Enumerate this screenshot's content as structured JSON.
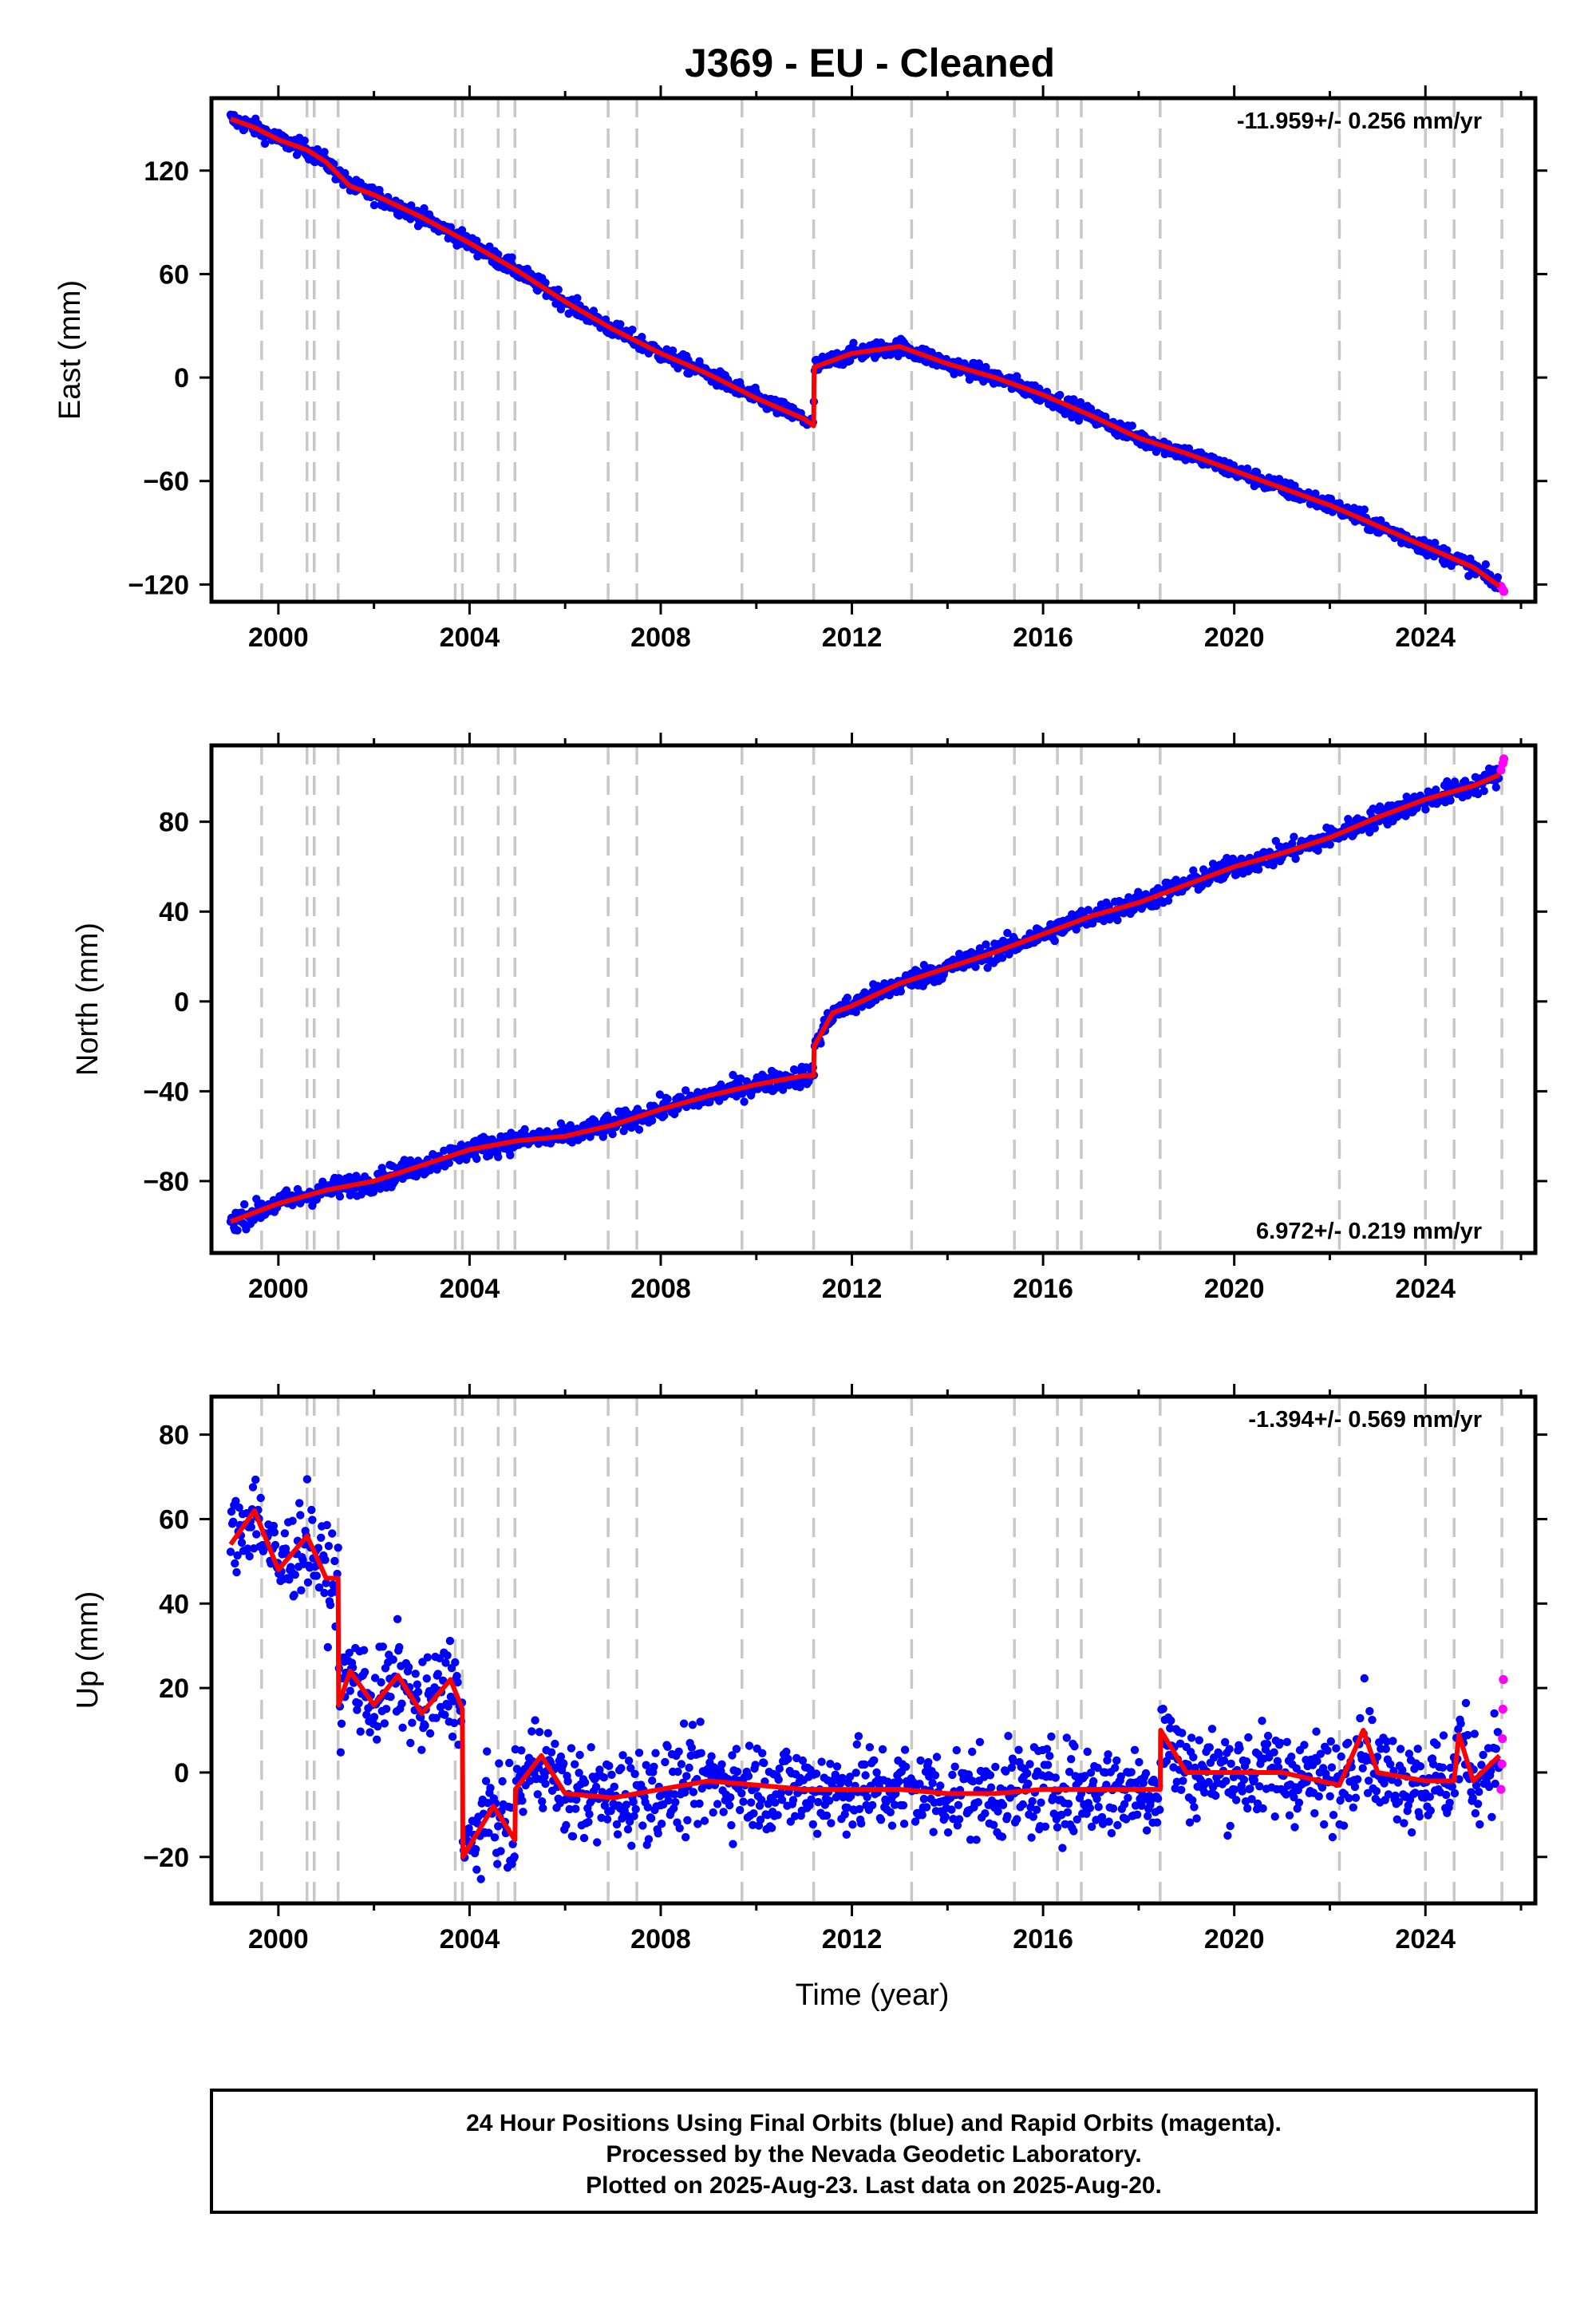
{
  "title": "J369  - EU - Cleaned",
  "colors": {
    "final": "#0000ff",
    "rapid": "#ff00ff",
    "model": "#ff0000",
    "steps": "#c8c8c8",
    "frame": "#000000"
  },
  "xlabel": "Time (year)",
  "x_ticks": [
    "2000",
    "2004",
    "2008",
    "2012",
    "2016",
    "2020",
    "2024"
  ],
  "footer": [
    "24 Hour Positions Using Final Orbits (blue) and Rapid Orbits (magenta).",
    "Processed by the Nevada Geodetic Laboratory.",
    "Plotted on 2025-Aug-23. Last data on 2025-Aug-20."
  ],
  "chart_data": [
    {
      "type": "scatter",
      "ylabel": "East (mm)",
      "rate": "-11.959+/- 0.256 mm/yr",
      "rate_position": "top-right",
      "xlim": [
        1998.6,
        2026.3
      ],
      "ylim": [
        -130,
        162
      ],
      "y_ticks": [
        -120,
        -60,
        0,
        60,
        120
      ],
      "y_tick_labels": [
        "−120",
        "−60",
        "0",
        "60",
        "120"
      ],
      "grid": false,
      "step_epochs": [
        1999.65,
        2000.6,
        2000.75,
        2001.25,
        2003.7,
        2003.85,
        2004.6,
        2004.95,
        2006.9,
        2007.5,
        2009.7,
        2011.2,
        2013.25,
        2015.4,
        2016.3,
        2016.8,
        2018.45,
        2022.2,
        2024.0,
        2024.6,
        2025.6
      ],
      "series": [
        {
          "name": "Final Orbits (blue)",
          "values": [
            [
              1999.0,
              150
            ],
            [
              1999.5,
              145
            ],
            [
              2000.0,
              138
            ],
            [
              2000.6,
              132
            ],
            [
              2001.0,
              125
            ],
            [
              2001.25,
              118
            ],
            [
              2001.5,
              111
            ],
            [
              2002.0,
              106
            ],
            [
              2003.0,
              93
            ],
            [
              2004.0,
              78
            ],
            [
              2005.0,
              62
            ],
            [
              2006.0,
              44
            ],
            [
              2007.0,
              28
            ],
            [
              2008.0,
              14
            ],
            [
              2009.0,
              2
            ],
            [
              2010.0,
              -12
            ],
            [
              2011.0,
              -24
            ],
            [
              2011.2,
              -28
            ],
            [
              2011.21,
              6
            ],
            [
              2012.0,
              14
            ],
            [
              2013.0,
              18
            ],
            [
              2014.0,
              8
            ],
            [
              2015.0,
              0
            ],
            [
              2016.0,
              -10
            ],
            [
              2017.0,
              -22
            ],
            [
              2018.0,
              -35
            ],
            [
              2019.0,
              -44
            ],
            [
              2020.0,
              -54
            ],
            [
              2021.0,
              -64
            ],
            [
              2022.0,
              -74
            ],
            [
              2023.0,
              -86
            ],
            [
              2024.0,
              -98
            ],
            [
              2025.0,
              -110
            ],
            [
              2025.55,
              -121
            ]
          ]
        },
        {
          "name": "Rapid Orbits (magenta)",
          "values": [
            [
              2025.58,
              -121
            ],
            [
              2025.62,
              -123
            ],
            [
              2025.64,
              -124
            ]
          ]
        }
      ]
    },
    {
      "type": "scatter",
      "ylabel": "North (mm)",
      "rate": "6.972+/- 0.219 mm/yr",
      "rate_position": "bottom-right",
      "xlim": [
        1998.6,
        2026.3
      ],
      "ylim": [
        -112,
        114
      ],
      "y_ticks": [
        -80,
        -40,
        0,
        40,
        80
      ],
      "y_tick_labels": [
        "−80",
        "−40",
        "0",
        "40",
        "80"
      ],
      "grid": false,
      "step_epochs": [
        1999.65,
        2000.6,
        2000.75,
        2001.25,
        2003.7,
        2003.85,
        2004.6,
        2004.95,
        2006.9,
        2007.5,
        2009.7,
        2011.2,
        2013.25,
        2015.4,
        2016.3,
        2016.8,
        2018.45,
        2022.2,
        2024.0,
        2024.6,
        2025.6
      ],
      "series": [
        {
          "name": "Final Orbits (blue)",
          "values": [
            [
              1999.0,
              -98
            ],
            [
              2000.0,
              -90
            ],
            [
              2001.0,
              -84
            ],
            [
              2002.0,
              -80
            ],
            [
              2003.0,
              -73
            ],
            [
              2004.0,
              -66
            ],
            [
              2005.0,
              -62
            ],
            [
              2006.0,
              -60
            ],
            [
              2007.0,
              -55
            ],
            [
              2008.0,
              -48
            ],
            [
              2009.0,
              -42
            ],
            [
              2010.0,
              -37
            ],
            [
              2011.0,
              -33
            ],
            [
              2011.2,
              -33
            ],
            [
              2011.21,
              -20
            ],
            [
              2011.6,
              -5
            ],
            [
              2012.0,
              -2
            ],
            [
              2013.0,
              8
            ],
            [
              2014.0,
              15
            ],
            [
              2015.0,
              22
            ],
            [
              2016.0,
              30
            ],
            [
              2017.0,
              38
            ],
            [
              2018.0,
              44
            ],
            [
              2019.0,
              52
            ],
            [
              2020.0,
              60
            ],
            [
              2021.0,
              66
            ],
            [
              2022.0,
              73
            ],
            [
              2023.0,
              82
            ],
            [
              2024.0,
              90
            ],
            [
              2025.0,
              96
            ],
            [
              2025.55,
              101
            ]
          ]
        },
        {
          "name": "Rapid Orbits (magenta)",
          "values": [
            [
              2025.58,
              103
            ],
            [
              2025.62,
              106
            ],
            [
              2025.64,
              108
            ]
          ]
        }
      ]
    },
    {
      "type": "scatter",
      "ylabel": "Up (mm)",
      "rate": "-1.394+/- 0.569 mm/yr",
      "rate_position": "top-right",
      "xlim": [
        1998.6,
        2026.3
      ],
      "ylim": [
        -31,
        89
      ],
      "y_ticks": [
        -20,
        0,
        20,
        40,
        60,
        80
      ],
      "y_tick_labels": [
        "−20",
        "0",
        "20",
        "40",
        "60",
        "80"
      ],
      "grid": false,
      "step_epochs": [
        1999.65,
        2000.6,
        2000.75,
        2001.25,
        2003.7,
        2003.85,
        2004.6,
        2004.95,
        2006.9,
        2007.5,
        2009.7,
        2011.2,
        2013.25,
        2015.4,
        2016.3,
        2016.8,
        2018.45,
        2022.2,
        2024.0,
        2024.6,
        2025.6
      ],
      "series": [
        {
          "name": "Final Orbits (blue)",
          "values": [
            [
              1999.0,
              54
            ],
            [
              1999.5,
              62
            ],
            [
              2000.0,
              48
            ],
            [
              2000.6,
              56
            ],
            [
              2001.0,
              46
            ],
            [
              2001.25,
              46
            ],
            [
              2001.26,
              16
            ],
            [
              2001.5,
              24
            ],
            [
              2002.0,
              16
            ],
            [
              2002.5,
              23
            ],
            [
              2003.0,
              14
            ],
            [
              2003.6,
              22
            ],
            [
              2003.85,
              15
            ],
            [
              2003.86,
              -20
            ],
            [
              2004.5,
              -8
            ],
            [
              2004.95,
              -16
            ],
            [
              2004.96,
              -4
            ],
            [
              2005.5,
              4
            ],
            [
              2006.0,
              -5
            ],
            [
              2007.0,
              -6
            ],
            [
              2008.0,
              -4
            ],
            [
              2009.0,
              -2
            ],
            [
              2010.0,
              -3
            ],
            [
              2011.0,
              -4
            ],
            [
              2012.0,
              -4
            ],
            [
              2013.0,
              -4
            ],
            [
              2014.0,
              -5
            ],
            [
              2015.0,
              -5
            ],
            [
              2016.0,
              -4
            ],
            [
              2017.0,
              -4
            ],
            [
              2018.45,
              -4
            ],
            [
              2018.46,
              10
            ],
            [
              2019.0,
              0
            ],
            [
              2020.0,
              0
            ],
            [
              2021.0,
              0
            ],
            [
              2022.2,
              -3
            ],
            [
              2022.7,
              10
            ],
            [
              2023.0,
              0
            ],
            [
              2024.0,
              -2
            ],
            [
              2024.6,
              -2
            ],
            [
              2024.7,
              9
            ],
            [
              2025.0,
              -2
            ],
            [
              2025.55,
              4
            ]
          ]
        },
        {
          "name": "Rapid Orbits (magenta)",
          "values": [
            [
              2025.58,
              -4
            ],
            [
              2025.6,
              2
            ],
            [
              2025.61,
              8
            ],
            [
              2025.62,
              15
            ],
            [
              2025.63,
              22
            ]
          ]
        }
      ]
    }
  ]
}
